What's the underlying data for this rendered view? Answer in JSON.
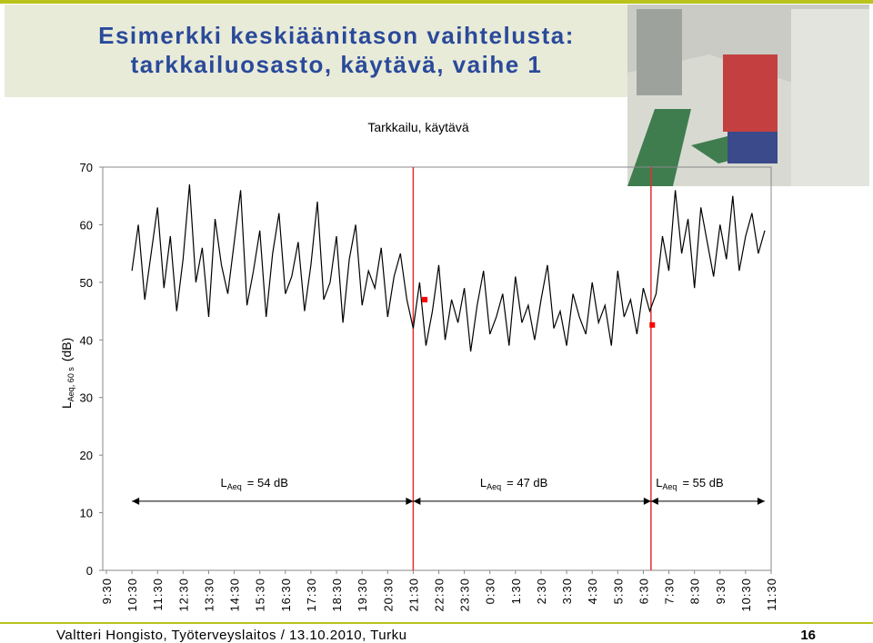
{
  "header": {
    "title_lines": [
      "Esimerkki keskiäänitason vaihtelusta:",
      "tarkkailuosasto, käytävä, vaihe 1"
    ]
  },
  "chart_data": {
    "type": "line",
    "title": "Tarkkailu, käytävä",
    "y_label": {
      "main": "L",
      "sub": "Aeq, 60 s",
      "unit": "(dB)"
    },
    "xlim": [
      0,
      26
    ],
    "xticks": [
      {
        "value": 0,
        "label": "9:30"
      },
      {
        "value": 1,
        "label": "10:30"
      },
      {
        "value": 2,
        "label": "11:30"
      },
      {
        "value": 3,
        "label": "12:30"
      },
      {
        "value": 4,
        "label": "13:30"
      },
      {
        "value": 5,
        "label": "14:30"
      },
      {
        "value": 6,
        "label": "15:30"
      },
      {
        "value": 7,
        "label": "16:30"
      },
      {
        "value": 8,
        "label": "17:30"
      },
      {
        "value": 9,
        "label": "18:30"
      },
      {
        "value": 10,
        "label": "19:30"
      },
      {
        "value": 11,
        "label": "20:30"
      },
      {
        "value": 12,
        "label": "21:30"
      },
      {
        "value": 13,
        "label": "22:30"
      },
      {
        "value": 14,
        "label": "23:30"
      },
      {
        "value": 15,
        "label": "0:30"
      },
      {
        "value": 16,
        "label": "1:30"
      },
      {
        "value": 17,
        "label": "2:30"
      },
      {
        "value": 18,
        "label": "3:30"
      },
      {
        "value": 19,
        "label": "4:30"
      },
      {
        "value": 20,
        "label": "5:30"
      },
      {
        "value": 21,
        "label": "6:30"
      },
      {
        "value": 22,
        "label": "7:30"
      },
      {
        "value": 23,
        "label": "8:30"
      },
      {
        "value": 24,
        "label": "9:30"
      },
      {
        "value": 25,
        "label": "10:30"
      },
      {
        "value": 26,
        "label": "11:30"
      }
    ],
    "ylim": [
      0,
      70
    ],
    "yticks": [
      0,
      10,
      20,
      30,
      40,
      50,
      60,
      70
    ],
    "grid": false,
    "x": [
      1,
      1.25,
      1.5,
      1.75,
      2,
      2.25,
      2.5,
      2.75,
      3,
      3.25,
      3.5,
      3.75,
      4,
      4.25,
      4.5,
      4.75,
      5,
      5.25,
      5.5,
      5.75,
      6,
      6.25,
      6.5,
      6.75,
      7,
      7.25,
      7.5,
      7.75,
      8,
      8.25,
      8.5,
      8.75,
      9,
      9.25,
      9.5,
      9.75,
      10,
      10.25,
      10.5,
      10.75,
      11,
      11.25,
      11.5,
      11.75,
      12,
      12.25,
      12.5,
      12.75,
      13,
      13.25,
      13.5,
      13.75,
      14,
      14.25,
      14.5,
      14.75,
      15,
      15.25,
      15.5,
      15.75,
      16,
      16.25,
      16.5,
      16.75,
      17,
      17.25,
      17.5,
      17.75,
      18,
      18.25,
      18.5,
      18.75,
      19,
      19.25,
      19.5,
      19.75,
      20,
      20.25,
      20.5,
      20.75,
      21,
      21.25,
      21.5,
      21.75,
      22,
      22.25,
      22.5,
      22.75,
      23,
      23.25,
      23.5,
      23.75,
      24,
      24.25,
      24.5,
      24.75,
      25,
      25.25,
      25.5,
      25.75
    ],
    "series": [
      {
        "color": "#000000",
        "values": [
          52,
          60,
          47,
          55,
          63,
          49,
          58,
          45,
          54,
          67,
          50,
          56,
          44,
          61,
          53,
          48,
          57,
          66,
          46,
          52,
          59,
          44,
          55,
          62,
          48,
          51,
          57,
          45,
          53,
          64,
          47,
          50,
          58,
          43,
          54,
          60,
          46,
          52,
          49,
          56,
          44,
          51,
          55,
          47,
          42,
          50,
          39,
          45,
          53,
          40,
          47,
          43,
          49,
          38,
          46,
          52,
          41,
          44,
          48,
          39,
          51,
          43,
          46,
          40,
          47,
          53,
          42,
          45,
          39,
          48,
          44,
          41,
          50,
          43,
          46,
          39,
          52,
          44,
          47,
          41,
          49,
          45,
          48,
          58,
          52,
          66,
          55,
          61,
          49,
          63,
          57,
          51,
          60,
          54,
          65,
          52,
          58,
          62,
          55,
          59
        ]
      }
    ],
    "markers": {
      "color": "#ff0000",
      "x": [
        12.45,
        21.35
      ],
      "y": [
        47,
        42.6
      ]
    },
    "vlines": {
      "color": "#e03030",
      "x": [
        12,
        21.3
      ]
    },
    "annotations": [
      {
        "main": "L",
        "sub": "Aeq",
        "text": "= 54 dB",
        "x": [
          1,
          12
        ],
        "y": 15
      },
      {
        "main": "L",
        "sub": "Aeq",
        "text": "= 47 dB",
        "x": [
          12,
          21.3
        ],
        "y": 15
      },
      {
        "main": "L",
        "sub": "Aeq",
        "text": "= 55 dB",
        "x": [
          21.3,
          25.75
        ],
        "y": 15
      }
    ]
  },
  "footer": {
    "author": "Valtteri Hongisto, Työterveyslaitos / 13.10.2010, Turku",
    "page": "16"
  }
}
